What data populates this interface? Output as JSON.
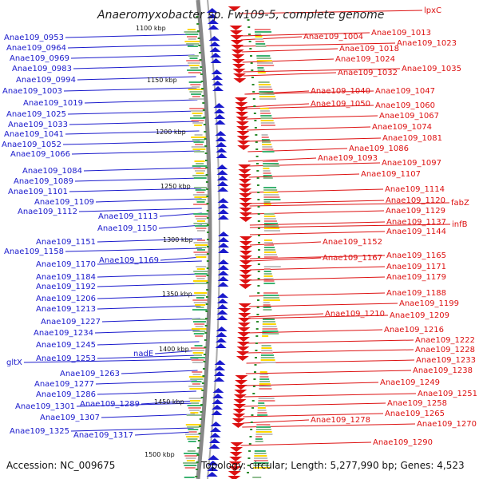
{
  "title": "Anaeromyxobacter sp. Fw109-5, complete genome",
  "footer": {
    "accession": "Accession: NC_009675",
    "info": "Topology: circular; Length: 5,277,990 bp; Genes: 4,523"
  },
  "colors": {
    "minus_strand": "#1a1acc",
    "plus_strand": "#dd1111",
    "backbone": "#888888",
    "ticks": "#2a8a2a"
  },
  "scale_labels": [
    "1100 kbp",
    "1150 kbp",
    "1200 kbp",
    "1250 kbp",
    "1300 kbp",
    "1350 kbp",
    "1400 kbp",
    "1450 kbp",
    "1500 kbp"
  ],
  "left_labels": [
    {
      "text": "Anae109_0953",
      "strand": "minus"
    },
    {
      "text": "Anae109_0964",
      "strand": "minus"
    },
    {
      "text": "Anae109_0969",
      "strand": "minus"
    },
    {
      "text": "Anae109_0983",
      "strand": "minus"
    },
    {
      "text": "Anae109_0994",
      "strand": "minus"
    },
    {
      "text": "Anae109_1003",
      "strand": "minus"
    },
    {
      "text": "Anae109_1019",
      "strand": "minus"
    },
    {
      "text": "Anae109_1025",
      "strand": "minus"
    },
    {
      "text": "Anae109_1033",
      "strand": "minus"
    },
    {
      "text": "Anae109_1041",
      "strand": "minus"
    },
    {
      "text": "Anae109_1052",
      "strand": "minus"
    },
    {
      "text": "Anae109_1066",
      "strand": "minus"
    },
    {
      "text": "Anae109_1084",
      "strand": "minus"
    },
    {
      "text": "Anae109_1089",
      "strand": "minus"
    },
    {
      "text": "Anae109_1101",
      "strand": "minus"
    },
    {
      "text": "Anae109_1109",
      "strand": "minus"
    },
    {
      "text": "Anae109_1112",
      "strand": "minus"
    },
    {
      "text": "Anae109_1113",
      "strand": "minus"
    },
    {
      "text": "Anae109_1150",
      "strand": "minus"
    },
    {
      "text": "Anae109_1151",
      "strand": "minus"
    },
    {
      "text": "Anae109_1158",
      "strand": "minus"
    },
    {
      "text": "Anae109_1169",
      "strand": "minus"
    },
    {
      "text": "Anae109_1170",
      "strand": "minus"
    },
    {
      "text": "Anae109_1184",
      "strand": "minus"
    },
    {
      "text": "Anae109_1192",
      "strand": "minus"
    },
    {
      "text": "Anae109_1206",
      "strand": "minus"
    },
    {
      "text": "Anae109_1213",
      "strand": "minus"
    },
    {
      "text": "Anae109_1227",
      "strand": "minus"
    },
    {
      "text": "Anae109_1234",
      "strand": "minus"
    },
    {
      "text": "Anae109_1245",
      "strand": "minus"
    },
    {
      "text": "nadE",
      "strand": "minus"
    },
    {
      "text": "Anae109_1253",
      "strand": "minus"
    },
    {
      "text": "gltX",
      "strand": "minus"
    },
    {
      "text": "Anae109_1263",
      "strand": "minus"
    },
    {
      "text": "Anae109_1277",
      "strand": "minus"
    },
    {
      "text": "Anae109_1286",
      "strand": "minus"
    },
    {
      "text": "Anae109_1289",
      "strand": "minus"
    },
    {
      "text": "Anae109_1301",
      "strand": "minus"
    },
    {
      "text": "Anae109_1307",
      "strand": "minus"
    },
    {
      "text": "Anae109_1317",
      "strand": "minus"
    },
    {
      "text": "Anae109_1325",
      "strand": "minus"
    }
  ],
  "right_labels": [
    {
      "text": "lpxC",
      "strand": "plus"
    },
    {
      "text": "Anae109_1013",
      "strand": "plus"
    },
    {
      "text": "Anae109_1004",
      "strand": "plus"
    },
    {
      "text": "Anae109_1023",
      "strand": "plus"
    },
    {
      "text": "Anae109_1018",
      "strand": "plus"
    },
    {
      "text": "Anae109_1024",
      "strand": "plus"
    },
    {
      "text": "Anae109_1035",
      "strand": "plus"
    },
    {
      "text": "Anae109_1032",
      "strand": "plus"
    },
    {
      "text": "Anae109_1040",
      "strand": "plus"
    },
    {
      "text": "Anae109_1047",
      "strand": "plus"
    },
    {
      "text": "Anae109_1050",
      "strand": "plus"
    },
    {
      "text": "Anae109_1060",
      "strand": "plus"
    },
    {
      "text": "Anae109_1067",
      "strand": "plus"
    },
    {
      "text": "Anae109_1074",
      "strand": "plus"
    },
    {
      "text": "Anae109_1081",
      "strand": "plus"
    },
    {
      "text": "Anae109_1086",
      "strand": "plus"
    },
    {
      "text": "Anae109_1093",
      "strand": "plus"
    },
    {
      "text": "Anae109_1097",
      "strand": "plus"
    },
    {
      "text": "Anae109_1107",
      "strand": "plus"
    },
    {
      "text": "Anae109_1114",
      "strand": "plus"
    },
    {
      "text": "Anae109_1120",
      "strand": "plus"
    },
    {
      "text": "fabZ",
      "strand": "plus"
    },
    {
      "text": "Anae109_1129",
      "strand": "plus"
    },
    {
      "text": "Anae109_1137",
      "strand": "plus"
    },
    {
      "text": "infB",
      "strand": "plus"
    },
    {
      "text": "Anae109_1144",
      "strand": "plus"
    },
    {
      "text": "Anae109_1152",
      "strand": "plus"
    },
    {
      "text": "Anae109_1165",
      "strand": "plus"
    },
    {
      "text": "Anae109_1167",
      "strand": "plus"
    },
    {
      "text": "Anae109_1171",
      "strand": "plus"
    },
    {
      "text": "Anae109_1179",
      "strand": "plus"
    },
    {
      "text": "Anae109_1188",
      "strand": "plus"
    },
    {
      "text": "Anae109_1199",
      "strand": "plus"
    },
    {
      "text": "Anae109_1210",
      "strand": "plus"
    },
    {
      "text": "Anae109_1209",
      "strand": "plus"
    },
    {
      "text": "Anae109_1216",
      "strand": "plus"
    },
    {
      "text": "Anae109_1222",
      "strand": "plus"
    },
    {
      "text": "Anae109_1228",
      "strand": "plus"
    },
    {
      "text": "Anae109_1233",
      "strand": "plus"
    },
    {
      "text": "Anae109_1238",
      "strand": "plus"
    },
    {
      "text": "Anae109_1249",
      "strand": "plus"
    },
    {
      "text": "Anae109_1251",
      "strand": "plus"
    },
    {
      "text": "Anae109_1258",
      "strand": "plus"
    },
    {
      "text": "Anae109_1265",
      "strand": "plus"
    },
    {
      "text": "Anae109_1270",
      "strand": "plus"
    },
    {
      "text": "Anae109_1278",
      "strand": "plus"
    },
    {
      "text": "Anae109_1290",
      "strand": "plus"
    }
  ]
}
